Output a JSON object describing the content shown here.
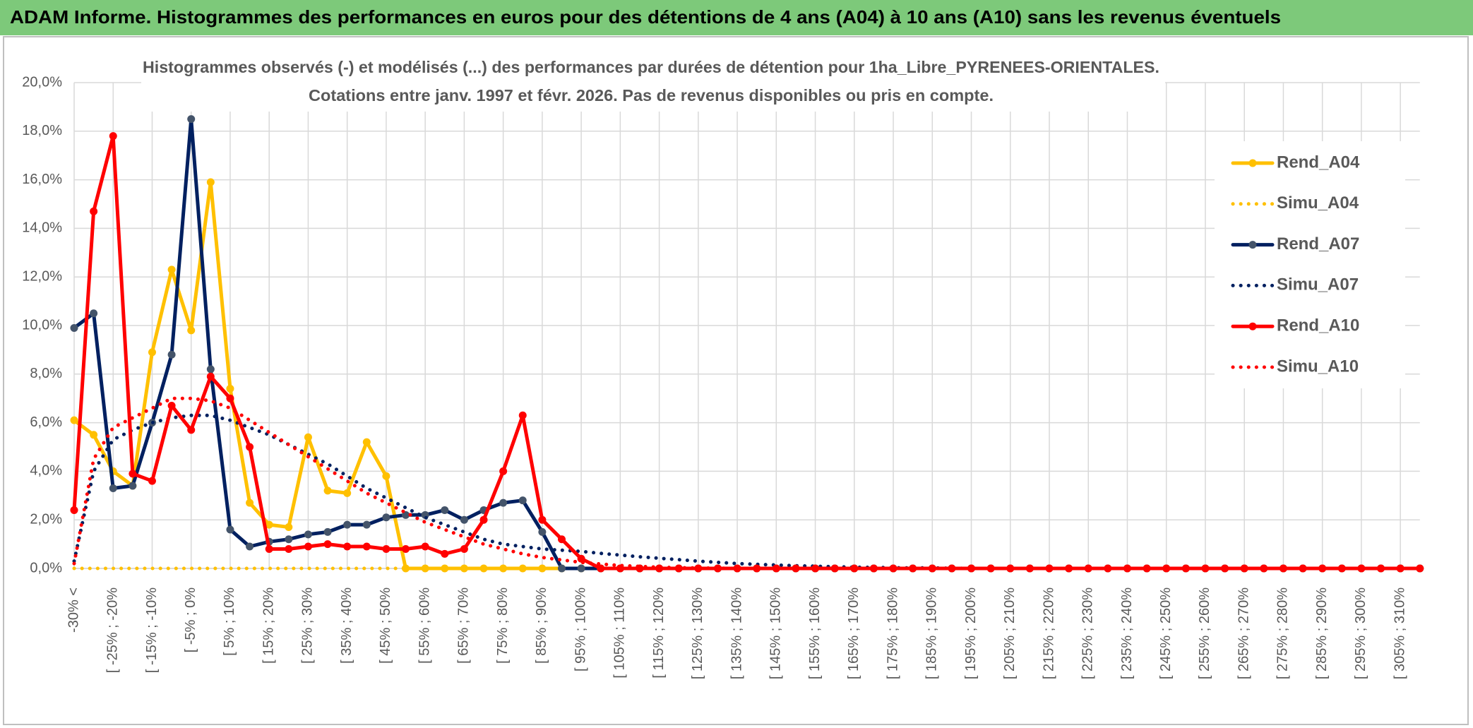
{
  "chart_data": {
    "type": "line",
    "title": "ADAM Informe. Histogrammes des performances en euros pour des détentions de 4 ans (A04) à 10 ans (A10) sans les revenus éventuels",
    "subtitle": [
      "Histogrammes observés (-) et modélisés (...) des performances par durées de détention pour 1ha_Libre_PYRENEES-ORIENTALES.",
      "Cotations entre janv. 1997 et févr. 2026. Pas de revenus disponibles ou pris en compte."
    ],
    "categories": [
      "-30% <",
      null,
      "[ -25% ; -20%",
      null,
      "[ -15% ; -10%",
      null,
      "[ -5% ; 0%",
      null,
      "[ 5% ; 10%",
      null,
      "[ 15% ; 20%",
      null,
      "[ 25% ; 30%",
      null,
      "[ 35% ; 40%",
      null,
      "[ 45% ; 50%",
      null,
      "[ 55% ; 60%",
      null,
      "[ 65% ; 70%",
      null,
      "[ 75% ; 80%",
      null,
      "[ 85% ; 90%",
      null,
      "[ 95% ; 100%",
      null,
      "[ 105% ; 110%",
      null,
      "[ 115% ; 120%",
      null,
      "[ 125% ; 130%",
      null,
      "[ 135% ; 140%",
      null,
      "[ 145% ; 150%",
      null,
      "[ 155% ; 160%",
      null,
      "[ 165% ; 170%",
      null,
      "[ 175% ; 180%",
      null,
      "[ 185% ; 190%",
      null,
      "[ 195% ; 200%",
      null,
      "[ 205% ; 210%",
      null,
      "[ 215% ; 220%",
      null,
      "[ 225% ; 230%",
      null,
      "[ 235% ; 240%",
      null,
      "[ 245% ; 250%",
      null,
      "[ 255% ; 260%",
      null,
      "[ 265% ; 270%",
      null,
      "[ 275% ; 280%",
      null,
      "[ 285% ; 290%",
      null,
      "[ 295% ; 300%",
      null,
      "[ 305% ; 310%",
      null
    ],
    "ylim": [
      0,
      20
    ],
    "yticks": [
      {
        "value": 0,
        "label": "0,0%"
      },
      {
        "value": 2,
        "label": "2,0%"
      },
      {
        "value": 4,
        "label": "4,0%"
      },
      {
        "value": 6,
        "label": "6,0%"
      },
      {
        "value": 8,
        "label": "8,0%"
      },
      {
        "value": 10,
        "label": "10,0%"
      },
      {
        "value": 12,
        "label": "12,0%"
      },
      {
        "value": 14,
        "label": "14,0%"
      },
      {
        "value": 16,
        "label": "16,0%"
      },
      {
        "value": 18,
        "label": "18,0%"
      },
      {
        "value": 20,
        "label": "20,0%"
      }
    ],
    "grid": true,
    "legend": "right",
    "series": [
      {
        "name": "Rend_A04",
        "color": "#ffc000",
        "marker_color": "#ffc000",
        "style": "solid",
        "values": [
          6.1,
          5.5,
          4.0,
          3.4,
          8.9,
          12.3,
          9.8,
          15.9,
          7.4,
          2.7,
          1.8,
          1.7,
          5.4,
          3.2,
          3.1,
          5.2,
          3.8,
          0,
          0,
          0,
          0,
          0,
          0,
          0,
          0,
          0,
          0,
          0,
          0,
          0,
          0,
          0,
          0,
          0,
          0,
          0,
          0,
          0,
          0,
          0,
          0,
          0,
          0,
          0,
          0,
          0,
          0,
          0,
          0,
          0,
          0,
          0,
          0,
          0,
          0,
          0,
          0,
          0,
          0,
          0,
          0,
          0,
          0,
          0,
          0,
          0,
          0,
          0,
          0,
          0
        ]
      },
      {
        "name": "Simu_A04",
        "color": "#ffc000",
        "style": "dotted",
        "values": [
          0,
          0,
          0,
          0,
          0,
          0,
          0,
          0,
          0,
          0,
          0,
          0,
          0,
          0,
          0,
          0,
          0,
          0,
          0,
          0,
          0,
          0,
          0,
          0,
          0,
          0,
          0,
          0,
          0,
          0,
          0,
          0,
          0,
          0,
          0,
          0,
          0,
          0,
          0,
          0,
          0,
          0,
          0,
          0,
          0,
          0,
          0,
          0,
          0,
          0,
          0,
          0,
          0,
          0,
          0,
          0,
          0,
          0,
          0,
          0,
          0,
          0,
          0,
          0,
          0,
          0,
          0,
          0,
          0,
          0
        ]
      },
      {
        "name": "Rend_A07",
        "color": "#002060",
        "marker_color": "#44546a",
        "style": "solid",
        "values": [
          9.9,
          10.5,
          3.3,
          3.4,
          6.0,
          8.8,
          18.5,
          8.2,
          1.6,
          0.9,
          1.1,
          1.2,
          1.4,
          1.5,
          1.8,
          1.8,
          2.1,
          2.2,
          2.2,
          2.4,
          2.0,
          2.4,
          2.7,
          2.8,
          1.5,
          0,
          0,
          0,
          0,
          0,
          0,
          0,
          0,
          0,
          0,
          0,
          0,
          0,
          0,
          0,
          0,
          0,
          0,
          0,
          0,
          0,
          0,
          0,
          0,
          0,
          0,
          0,
          0,
          0,
          0,
          0,
          0,
          0,
          0,
          0,
          0,
          0,
          0,
          0,
          0,
          0,
          0,
          0,
          0,
          0
        ]
      },
      {
        "name": "Simu_A07",
        "color": "#002060",
        "style": "dotted",
        "values": [
          0.3,
          4.0,
          5.3,
          5.7,
          6.0,
          6.2,
          6.3,
          6.3,
          6.1,
          5.8,
          5.5,
          5.1,
          4.7,
          4.3,
          3.8,
          3.3,
          2.9,
          2.5,
          2.1,
          1.8,
          1.5,
          1.2,
          1.0,
          0.9,
          0.8,
          0.75,
          0.7,
          0.62,
          0.55,
          0.48,
          0.42,
          0.36,
          0.3,
          0.25,
          0.2,
          0.17,
          0.14,
          0.11,
          0.09,
          0.07,
          0.05,
          0.04,
          0.03,
          0.02,
          0.02,
          0.01,
          0,
          0,
          0,
          0,
          0,
          0,
          0,
          0,
          0,
          0,
          0,
          0,
          0,
          0,
          0,
          0,
          0,
          0,
          0,
          0,
          0,
          0,
          0,
          0
        ]
      },
      {
        "name": "Rend_A10",
        "color": "#ff0000",
        "marker_color": "#ff0000",
        "style": "solid",
        "values": [
          2.4,
          14.7,
          17.8,
          3.9,
          3.6,
          6.7,
          5.7,
          7.9,
          7.0,
          5.0,
          0.8,
          0.8,
          0.9,
          1.0,
          0.9,
          0.9,
          0.8,
          0.8,
          0.9,
          0.6,
          0.8,
          2.0,
          4.0,
          6.3,
          2.0,
          1.2,
          0.4,
          0,
          0,
          0,
          0,
          0,
          0,
          0,
          0,
          0,
          0,
          0,
          0,
          0,
          0,
          0,
          0,
          0,
          0,
          0,
          0,
          0,
          0,
          0,
          0,
          0,
          0,
          0,
          0,
          0,
          0,
          0,
          0,
          0,
          0,
          0,
          0,
          0,
          0,
          0,
          0,
          0,
          0,
          0
        ]
      },
      {
        "name": "Simu_A10",
        "color": "#ff0000",
        "style": "dotted",
        "values": [
          0.2,
          4.5,
          5.8,
          6.2,
          6.6,
          7.0,
          7.0,
          6.9,
          6.6,
          6.1,
          5.6,
          5.1,
          4.6,
          4.1,
          3.6,
          3.1,
          2.7,
          2.3,
          1.9,
          1.6,
          1.3,
          1.0,
          0.8,
          0.6,
          0.45,
          0.35,
          0.25,
          0.18,
          0.12,
          0.08,
          0.05,
          0.03,
          0.02,
          0.01,
          0,
          0,
          0,
          0,
          0,
          0,
          0,
          0,
          0,
          0,
          0,
          0,
          0,
          0,
          0,
          0,
          0,
          0,
          0,
          0,
          0,
          0,
          0,
          0,
          0,
          0,
          0,
          0,
          0,
          0,
          0,
          0,
          0,
          0,
          0,
          0
        ]
      }
    ]
  }
}
